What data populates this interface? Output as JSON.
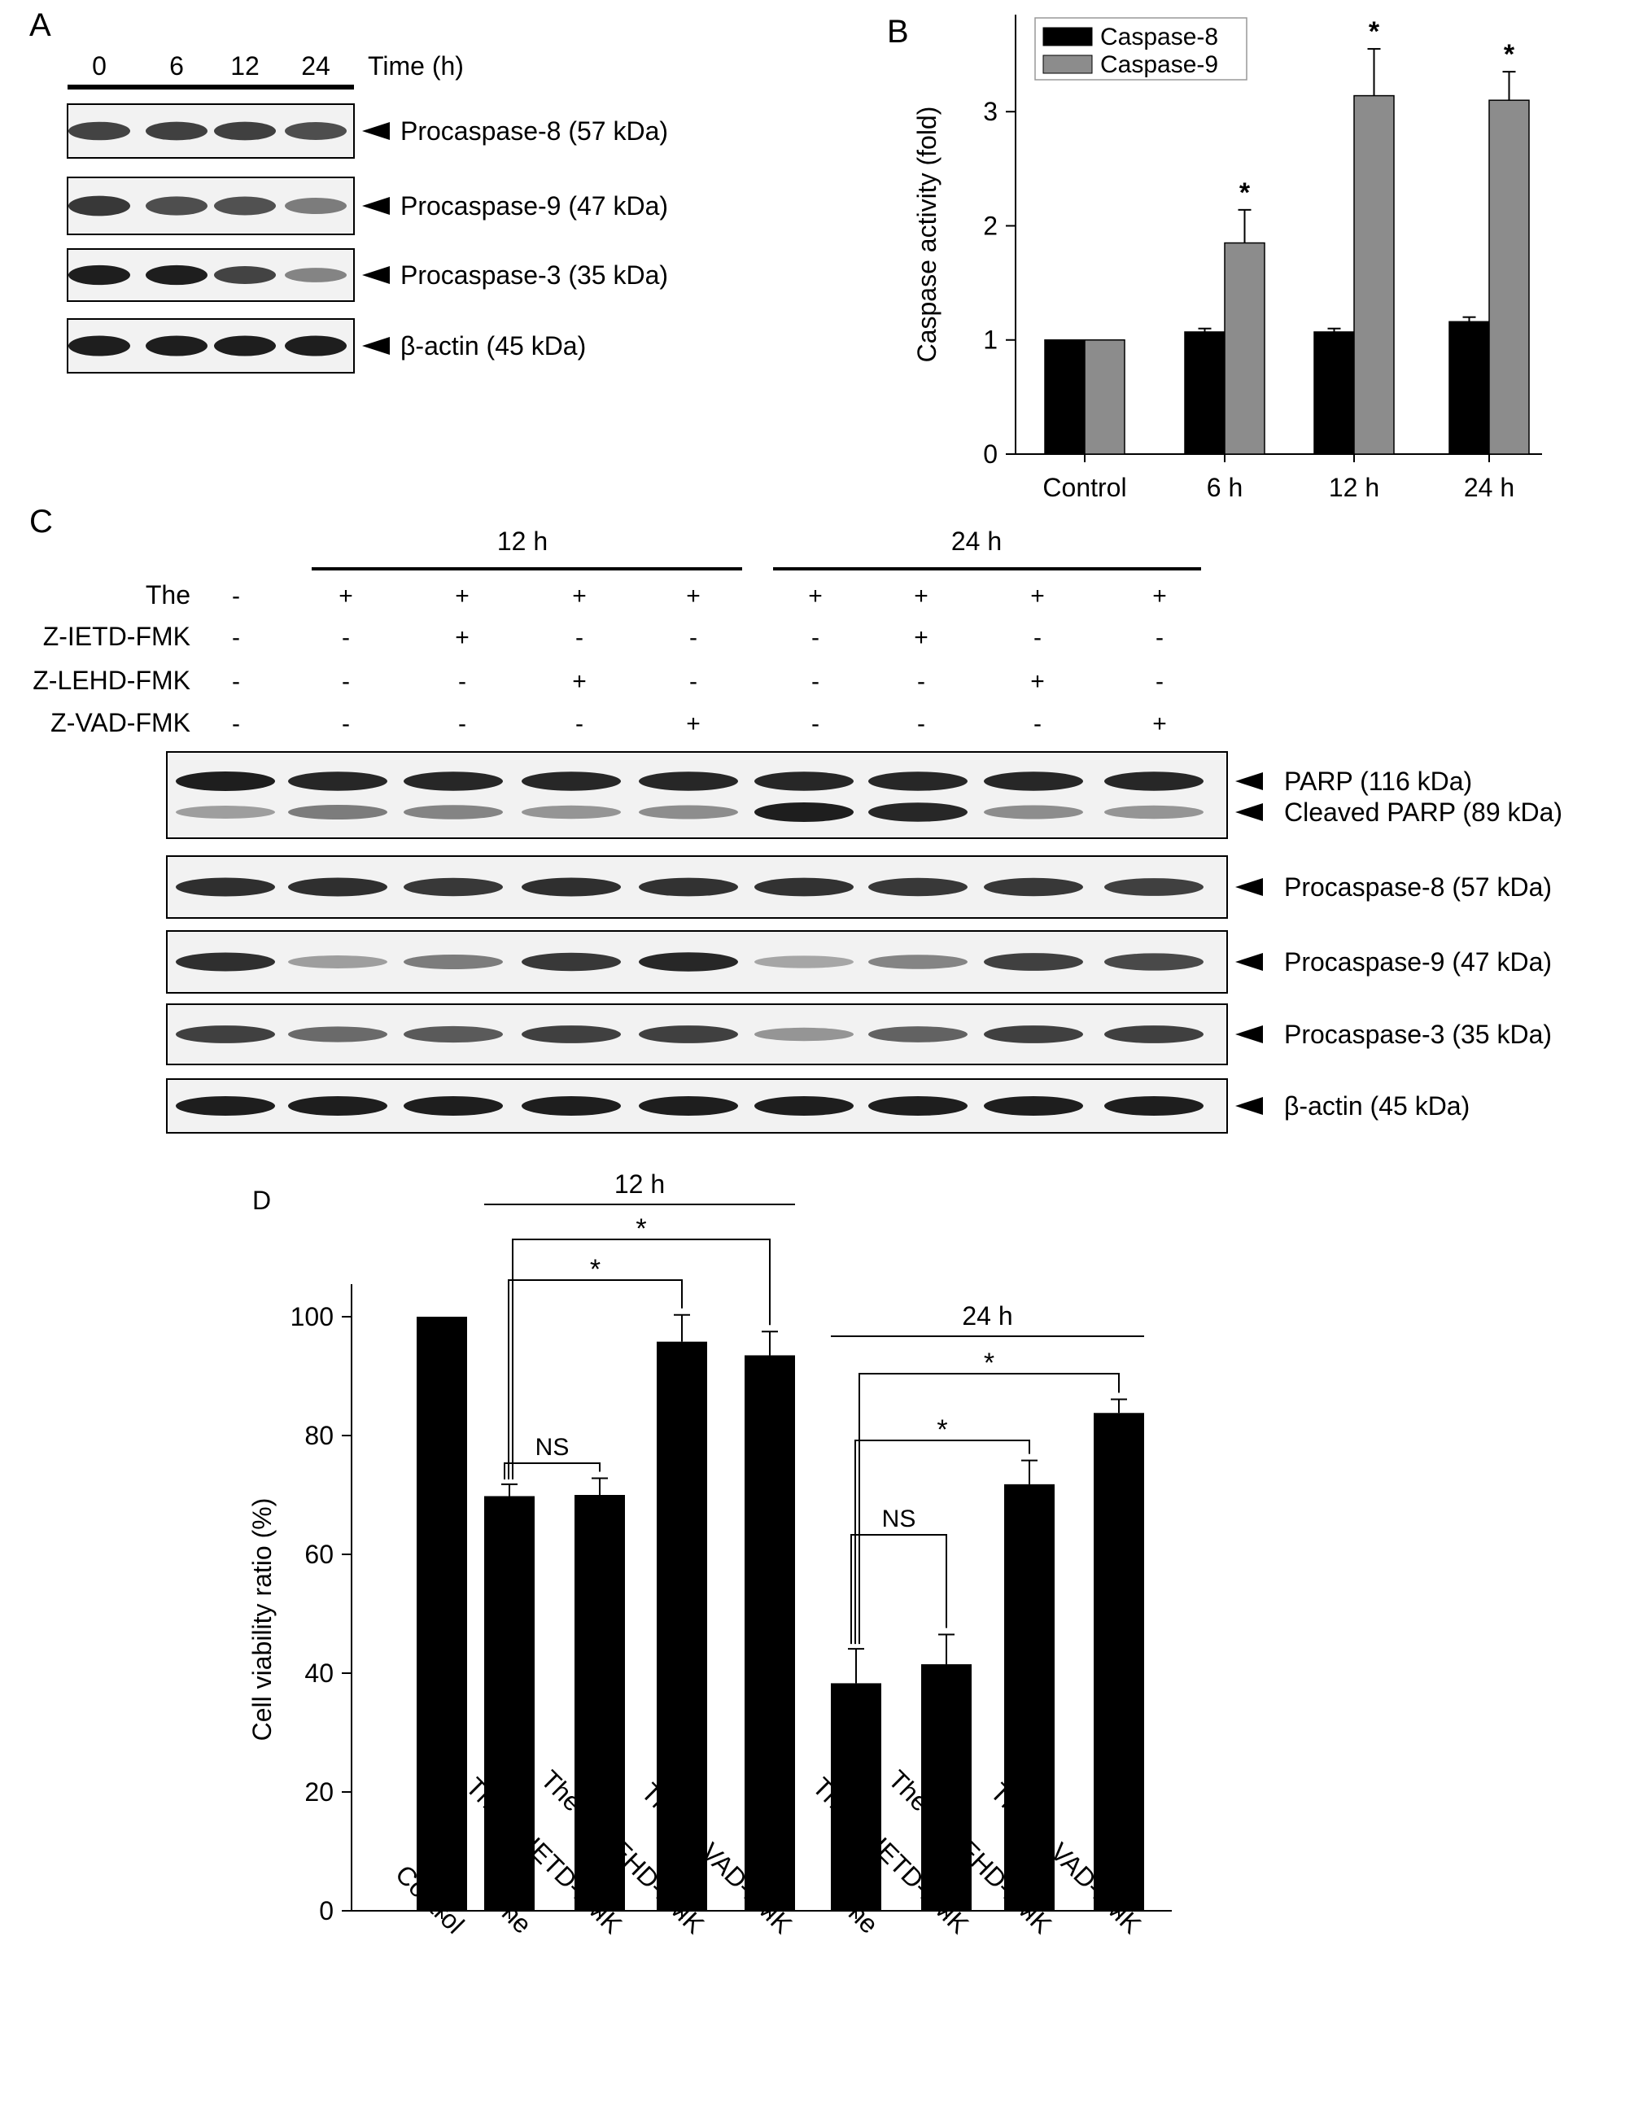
{
  "panel_labels": {
    "a": "A",
    "b": "B",
    "c": "C",
    "d": "D"
  },
  "panel_a": {
    "time_label": "Time (h)",
    "timepoints": [
      "0",
      "6",
      "12",
      "24"
    ],
    "blots": [
      {
        "label": "Procaspase-8 (57 kDa)",
        "intensity": [
          0.78,
          0.8,
          0.8,
          0.72
        ]
      },
      {
        "label": "Procaspase-9 (47 kDa)",
        "intensity": [
          0.85,
          0.72,
          0.7,
          0.45
        ]
      },
      {
        "label": "Procaspase-3 (35 kDa)",
        "intensity": [
          1.0,
          1.0,
          0.78,
          0.4
        ]
      },
      {
        "label": "β-actin (45 kDa)",
        "intensity": [
          1.0,
          1.0,
          1.0,
          1.0
        ]
      }
    ]
  },
  "panel_b": {
    "chart_data": {
      "type": "bar",
      "categories": [
        "Control",
        "6 h",
        "12 h",
        "24 h"
      ],
      "series": [
        {
          "name": "Caspase-8",
          "values": [
            1.0,
            1.07,
            1.07,
            1.16
          ],
          "errors": [
            0,
            0.03,
            0.03,
            0.04
          ],
          "color": "#000000"
        },
        {
          "name": "Caspase-9",
          "values": [
            1.0,
            1.85,
            3.14,
            3.1
          ],
          "errors": [
            0,
            0.29,
            0.41,
            0.25
          ],
          "color": "#8c8c8c"
        }
      ],
      "significance": [
        "",
        "*",
        "*",
        "*"
      ],
      "ylabel": "Caspase activity (fold)",
      "ylim": [
        0,
        3.85
      ],
      "yticks": [
        "0",
        "1",
        "2",
        "3"
      ],
      "legend_position": "top-left"
    }
  },
  "panel_c": {
    "group_labels": [
      "12 h",
      "24 h"
    ],
    "treatment_rows": [
      {
        "label": "The",
        "signs": [
          "-",
          "+",
          "+",
          "+",
          "+",
          "+",
          "+",
          "+",
          "+"
        ]
      },
      {
        "label": "Z-IETD-FMK",
        "signs": [
          "-",
          "-",
          "+",
          "-",
          "-",
          "-",
          "+",
          "-",
          "-"
        ]
      },
      {
        "label": "Z-LEHD-FMK",
        "signs": [
          "-",
          "-",
          "-",
          "+",
          "-",
          "-",
          "-",
          "+",
          "-"
        ]
      },
      {
        "label": "Z-VAD-FMK",
        "signs": [
          "-",
          "-",
          "-",
          "-",
          "+",
          "-",
          "-",
          "-",
          "+"
        ]
      }
    ],
    "blots": [
      {
        "label": "PARP (116 kDa)",
        "intensity": [
          1.0,
          0.95,
          0.95,
          0.95,
          0.95,
          0.95,
          0.95,
          0.95,
          0.95
        ]
      },
      {
        "label": "Cleaved PARP (89 kDa)",
        "intensity": [
          0.25,
          0.45,
          0.4,
          0.3,
          0.35,
          1.0,
          0.95,
          0.35,
          0.3
        ]
      },
      {
        "label": "Procaspase-8 (57 kDa)",
        "intensity": [
          0.9,
          0.9,
          0.85,
          0.9,
          0.88,
          0.88,
          0.85,
          0.85,
          0.8
        ]
      },
      {
        "label": "Procaspase-9 (47 kDa)",
        "intensity": [
          0.9,
          0.25,
          0.45,
          0.85,
          0.95,
          0.2,
          0.4,
          0.8,
          0.75
        ]
      },
      {
        "label": "Procaspase-3 (35 kDa)",
        "intensity": [
          0.8,
          0.55,
          0.65,
          0.8,
          0.8,
          0.3,
          0.6,
          0.8,
          0.8
        ]
      },
      {
        "label": "β-actin (45 kDa)",
        "intensity": [
          1.0,
          1.0,
          1.0,
          1.0,
          1.0,
          1.0,
          1.0,
          1.0,
          1.0
        ]
      }
    ]
  },
  "panel_d": {
    "chart_data": {
      "type": "bar",
      "categories": [
        "Control",
        "The",
        "The+Z-IETD-FMK",
        "The+Z-LEHD-FMK",
        "The+Z-VAD-FMK",
        "The",
        "The+Z-IETD-FMK",
        "The+Z-LEHD-FMK",
        "The+Z-VAD-FMK"
      ],
      "values": [
        100,
        69.8,
        70.0,
        95.8,
        93.5,
        38.3,
        41.5,
        71.8,
        83.8
      ],
      "errors": [
        0,
        2.0,
        2.8,
        4.5,
        4.0,
        5.8,
        5.0,
        4.0,
        2.3
      ],
      "ylabel": "Cell viability ratio (%)",
      "ylim": [
        0,
        100
      ],
      "yticks": [
        "0",
        "20",
        "40",
        "60",
        "80",
        "100"
      ],
      "group_labels": [
        {
          "label": "12 h",
          "from": 1,
          "to": 4
        },
        {
          "label": "24 h",
          "from": 5,
          "to": 8
        }
      ],
      "comparisons": [
        {
          "from": 1,
          "to": 2,
          "label": "NS"
        },
        {
          "from": 1,
          "to": 3,
          "label": "*"
        },
        {
          "from": 1,
          "to": 4,
          "label": "*"
        },
        {
          "from": 5,
          "to": 6,
          "label": "NS"
        },
        {
          "from": 5,
          "to": 7,
          "label": "*"
        },
        {
          "from": 5,
          "to": 8,
          "label": "*"
        }
      ]
    }
  }
}
